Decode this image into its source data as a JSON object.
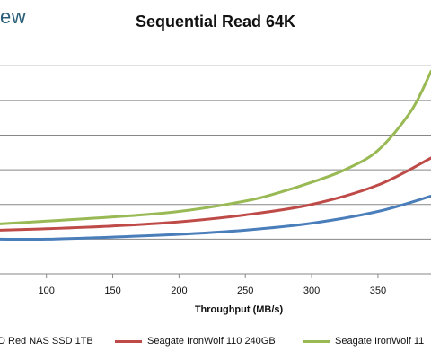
{
  "brand": {
    "text": "ew"
  },
  "chart_data": {
    "type": "line",
    "title": "Sequential Read 64K",
    "xlabel": "Throughput (MB/s)",
    "ylabel": "",
    "x_ticks": [
      100,
      150,
      200,
      250,
      300,
      350
    ],
    "xlim": [
      65,
      390
    ],
    "ylim": [
      0,
      325
    ],
    "grid": true,
    "legend_position": "bottom",
    "series": [
      {
        "name": "D Red NAS SSD 1TB",
        "color": "#4a7ebb",
        "x": [
          65,
          100,
          150,
          200,
          250,
          300,
          350,
          390
        ],
        "y": [
          50,
          50,
          53,
          57,
          63,
          73,
          90,
          112
        ]
      },
      {
        "name": "Seagate IronWolf 110 240GB",
        "color": "#be4b48",
        "x": [
          65,
          100,
          150,
          200,
          250,
          300,
          350,
          390
        ],
        "y": [
          63,
          65,
          69,
          75,
          85,
          100,
          128,
          167
        ]
      },
      {
        "name": "Seagate IronWolf 11",
        "color": "#98b954",
        "x": [
          65,
          100,
          150,
          200,
          250,
          275,
          300,
          325,
          350,
          375,
          390
        ],
        "y": [
          72,
          76,
          82,
          90,
          105,
          117,
          132,
          150,
          178,
          235,
          292
        ]
      }
    ]
  }
}
